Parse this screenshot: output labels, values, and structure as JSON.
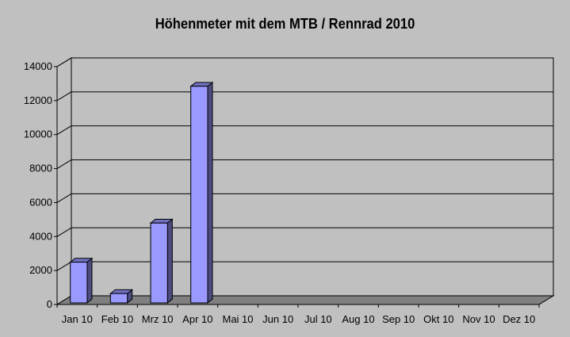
{
  "chart_data": {
    "type": "bar",
    "title": "Höhenmeter mit dem MTB / Rennrad 2010",
    "categories": [
      "Jan 10",
      "Feb 10",
      "Mrz 10",
      "Apr 10",
      "Mai 10",
      "Jun 10",
      "Jul 10",
      "Aug 10",
      "Sep 10",
      "Okt 10",
      "Nov 10",
      "Dez 10"
    ],
    "values": [
      2400,
      550,
      4700,
      12750,
      0,
      0,
      0,
      0,
      0,
      0,
      0,
      0
    ],
    "ylim": [
      0,
      14000
    ],
    "yticks": [
      0,
      2000,
      4000,
      6000,
      8000,
      10000,
      12000,
      14000
    ],
    "xlabel": "",
    "ylabel": "",
    "grid": true,
    "legend": "none",
    "bar_color": "#9999ff",
    "background_color": "#c0c0c0",
    "floor_color": "#808080"
  }
}
